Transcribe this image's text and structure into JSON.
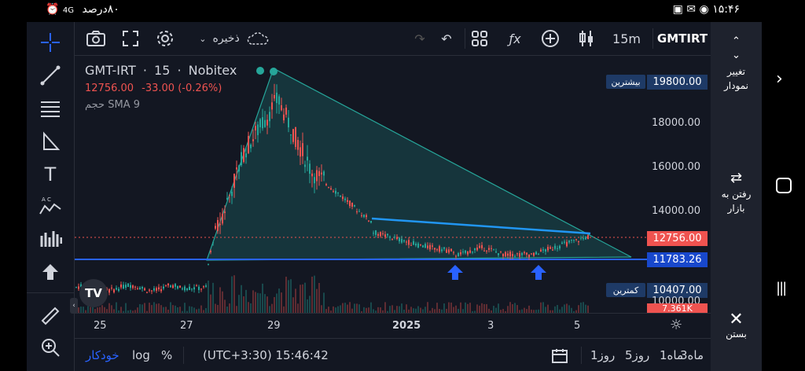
{
  "status_bar": {
    "battery": "۸۰درصد",
    "network": "4G",
    "time": "۱۵:۴۶"
  },
  "symbol": {
    "ticker": "GMT-IRT",
    "interval": "15",
    "exchange": "Nobitex",
    "price": "12756.00",
    "change": "-33.00 (-0.26%)",
    "indicator": "حجم  SMA 9"
  },
  "topbar": {
    "save_label": "ذخیره",
    "interval_label": "15m",
    "symbol_label": "GMTIRT"
  },
  "price_axis": {
    "ticks": [
      "18000.00",
      "16000.00",
      "14000.00",
      "10000.00"
    ],
    "high_value": "19800.00",
    "high_label": "بیشترین",
    "low_value": "10407.00",
    "low_label": "کمترین",
    "current": "12756.00",
    "line": "11783.26",
    "volume": "7.361K"
  },
  "time_axis": {
    "labels": [
      "25",
      "27",
      "29",
      "2025",
      "3",
      "5"
    ]
  },
  "bottom_bar": {
    "auto": "خودکار",
    "log": "log",
    "percent": "%",
    "timezone": "(UTC+3:30) 15:46:42",
    "ranges": [
      "1روز",
      "5روز",
      "1ماه",
      "3ماه"
    ]
  },
  "right_panel": {
    "change_chart": "تغییر نمودار",
    "go_market": "رفتن به بازار",
    "close": "بستن"
  },
  "colors": {
    "bg": "#131722",
    "up": "#26a69a",
    "down": "#ef5350",
    "line": "#2962ff",
    "accent": "#2962ff"
  }
}
